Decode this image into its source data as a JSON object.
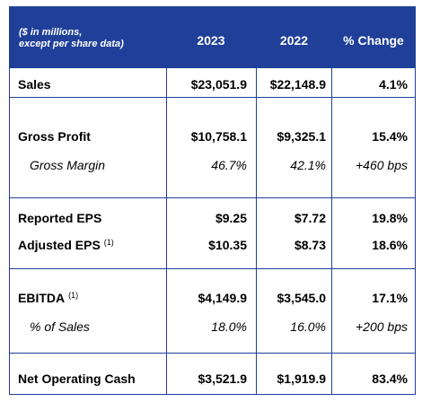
{
  "header": {
    "note": "($ in millions,\nexcept per share data)",
    "col_2023": "2023",
    "col_2022": "2022",
    "col_change": "% Change"
  },
  "rows": {
    "sales": {
      "label": "Sales",
      "v2023": "$23,051.9",
      "v2022": "$22,148.9",
      "change": "4.1%"
    },
    "gross_profit": {
      "label": "Gross Profit",
      "v2023": "$10,758.1",
      "v2022": "$9,325.1",
      "change": "15.4%"
    },
    "gross_margin": {
      "label": "Gross Margin",
      "v2023": "46.7%",
      "v2022": "42.1%",
      "change": "+460 bps"
    },
    "reported_eps": {
      "label": "Reported EPS",
      "v2023": "$9.25",
      "v2022": "$7.72",
      "change": "19.8%"
    },
    "adjusted_eps": {
      "label": "Adjusted EPS",
      "footnote": "(1)",
      "v2023": "$10.35",
      "v2022": "$8.73",
      "change": "18.6%"
    },
    "ebitda": {
      "label": "EBITDA",
      "footnote": "(1)",
      "v2023": "$4,149.9",
      "v2022": "$3,545.0",
      "change": "17.1%"
    },
    "pct_sales": {
      "label": "% of Sales",
      "v2023": "18.0%",
      "v2022": "16.0%",
      "change": "+200 bps"
    },
    "net_op_cash": {
      "label": "Net Operating Cash",
      "v2023": "$3,521.9",
      "v2022": "$1,919.9",
      "change": "83.4%"
    }
  },
  "colors": {
    "header_bg": "#1f3f99",
    "header_text": "#ffffff",
    "grid": "#1f3f99"
  }
}
